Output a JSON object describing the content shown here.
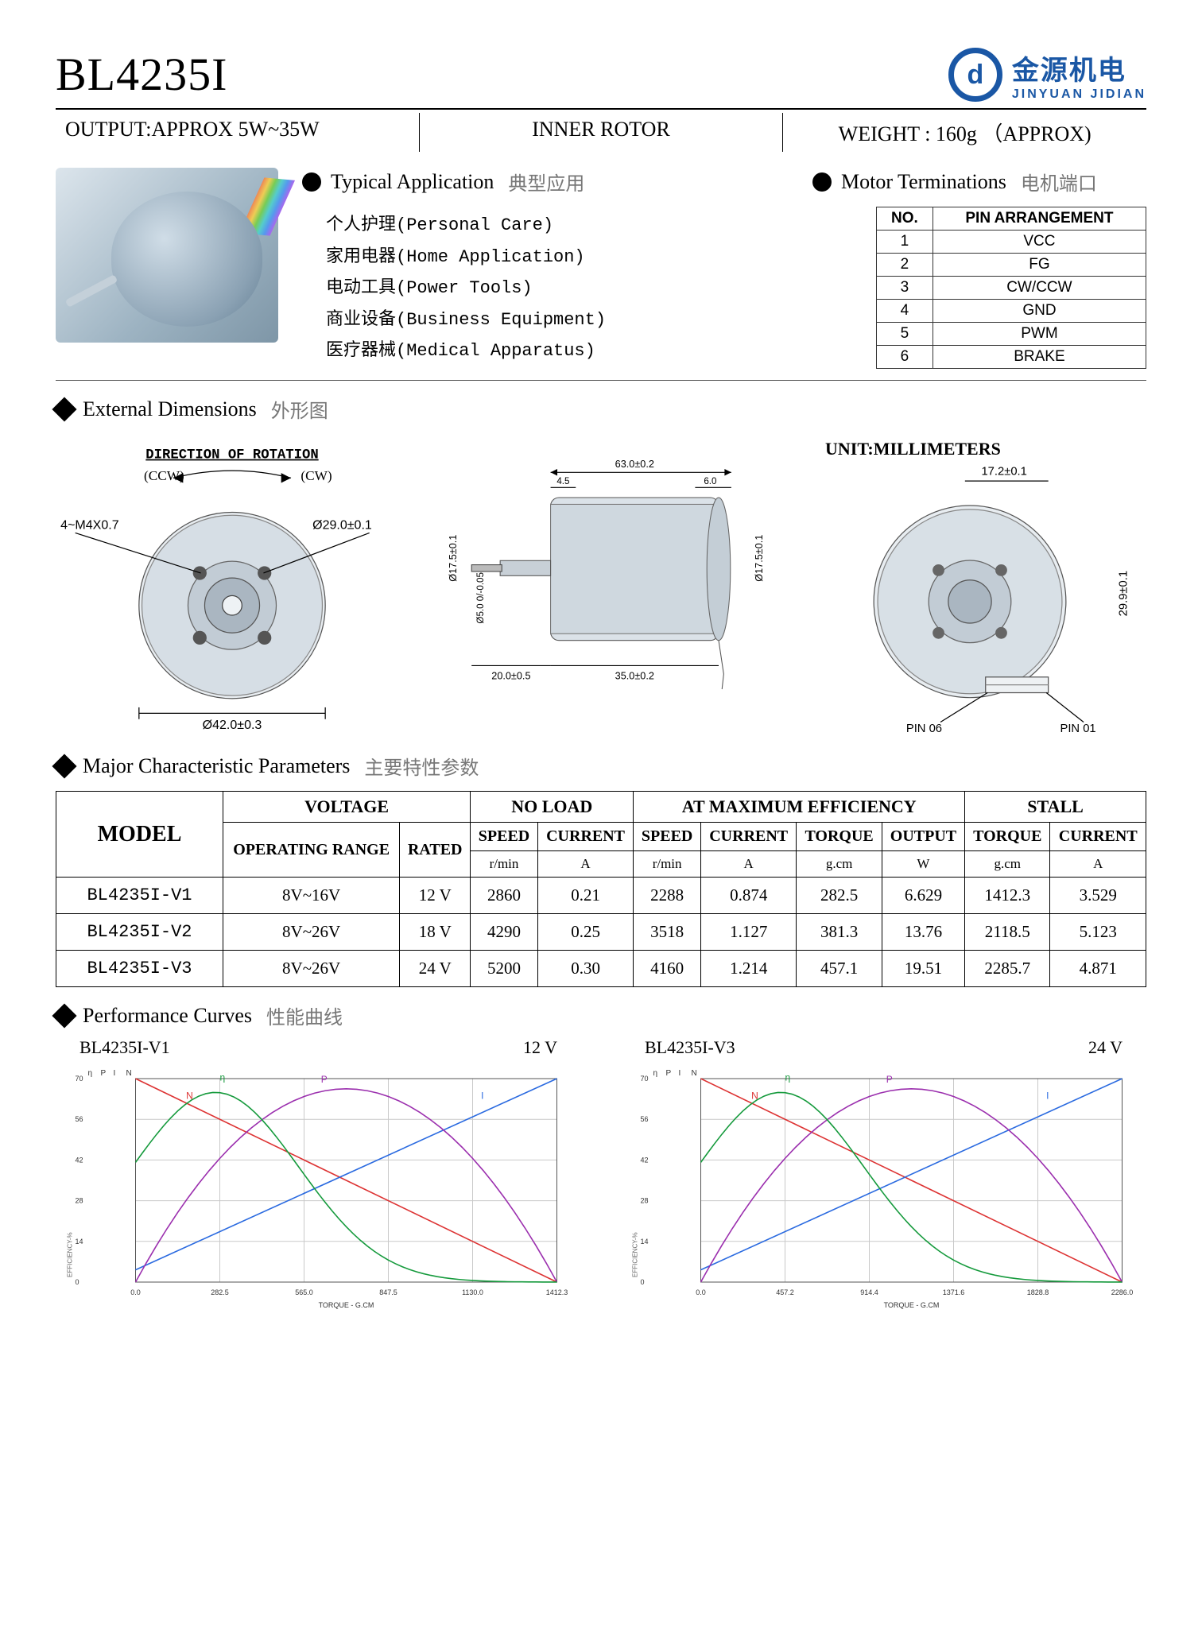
{
  "header": {
    "title": "BL4235I",
    "logo_cn": "金源机电",
    "logo_en": "JINYUAN JIDIAN",
    "logo_letter": "d"
  },
  "meta": {
    "output": "OUTPUT:APPROX 5W~35W",
    "rotor": "INNER  ROTOR",
    "weight": "WEIGHT : 160g （APPROX)"
  },
  "apps": {
    "head_en": "Typical  Application",
    "head_cn": "典型应用",
    "items": [
      "个人护理(Personal Care)",
      "家用电器(Home Application)",
      "电动工具(Power Tools)",
      "商业设备(Business Equipment)",
      "医疗器械(Medical Apparatus)"
    ]
  },
  "terminations": {
    "head_en": "Motor Terminations",
    "head_cn": "电机端口",
    "columns": [
      "NO.",
      "PIN  ARRANGEMENT"
    ],
    "rows": [
      [
        "1",
        "VCC"
      ],
      [
        "2",
        "FG"
      ],
      [
        "3",
        "CW/CCW"
      ],
      [
        "4",
        "GND"
      ],
      [
        "5",
        "PWM"
      ],
      [
        "6",
        "BRAKE"
      ]
    ]
  },
  "dims": {
    "head_en": "External  Dimensions",
    "head_cn": "外形图",
    "unit": "UNIT:MILLIMETERS",
    "labels": {
      "dor": "DIRECTION OF ROTATION",
      "ccw": "(CCW)",
      "cw": "(CW)",
      "m4": "4~M4X0.7",
      "d29": "Ø29.0±0.1",
      "d42": "Ø42.0±0.3",
      "d175a": "Ø17.5±0.1",
      "d175b": "Ø17.5±0.1",
      "l63": "63.0±0.2",
      "l45": "4.5",
      "l60": "6.0",
      "d50": "Ø5.0 0/-0.05",
      "l20": "20.0±0.5",
      "l35": "35.0±0.2",
      "l172": "17.2±0.1",
      "l299": "29.9±0.1",
      "pin06": "PIN 06",
      "pin01": "PIN 01"
    }
  },
  "params": {
    "head_en": "Major  Characteristic Parameters",
    "head_cn": "主要特性参数",
    "model_h": "MODEL",
    "groups": [
      "VOLTAGE",
      "NO   LOAD",
      "AT  MAXIMUM  EFFICIENCY",
      "STALL"
    ],
    "subs": {
      "voltage": [
        "OPERATING RANGE",
        "RATED"
      ],
      "noload": [
        "SPEED",
        "CURRENT"
      ],
      "maxeff": [
        "SPEED",
        "CURRENT",
        "TORQUE",
        "OUTPUT"
      ],
      "stall": [
        "TORQUE",
        "CURRENT"
      ]
    },
    "units": [
      "",
      "",
      "r/min",
      "A",
      "r/min",
      "A",
      "g.cm",
      "W",
      "g.cm",
      "A"
    ],
    "rows": [
      {
        "model": "BL4235I-V1",
        "v": [
          "8V~16V",
          "12 V",
          "2860",
          "0.21",
          "2288",
          "0.874",
          "282.5",
          "6.629",
          "1412.3",
          "3.529"
        ]
      },
      {
        "model": "BL4235I-V2",
        "v": [
          "8V~26V",
          "18 V",
          "4290",
          "0.25",
          "3518",
          "1.127",
          "381.3",
          "13.76",
          "2118.5",
          "5.123"
        ]
      },
      {
        "model": "BL4235I-V3",
        "v": [
          "8V~26V",
          "24 V",
          "5200",
          "0.30",
          "4160",
          "1.214",
          "457.1",
          "19.51",
          "2285.7",
          "4.871"
        ]
      }
    ]
  },
  "curves": {
    "head_en": "Performance Curves",
    "head_cn": "性能曲线",
    "charts": [
      {
        "title_left": "BL4235I-V1",
        "title_right": "12 V",
        "xmax": 1412.3,
        "xticks": [
          "0.0",
          "282.5",
          "565.0",
          "847.5",
          "1130.0",
          "1412.3"
        ],
        "xlabel": "TORQUE - G.CM",
        "left_ticks": [
          "70",
          "56",
          "42",
          "28",
          "14",
          "0"
        ],
        "axis_labels": [
          "η",
          "P",
          "I",
          "N"
        ],
        "colors": {
          "N": "#d33",
          "I": "#2a6ae0",
          "P": "#9b2fae",
          "eta": "#159a3c"
        },
        "grid": "#c9c9c9"
      },
      {
        "title_left": "BL4235I-V3",
        "title_right": "24 V",
        "xmax": 2285.7,
        "xticks": [
          "0.0",
          "457.2",
          "914.4",
          "1371.6",
          "1828.8",
          "2286.0"
        ],
        "xlabel": "TORQUE - G.CM",
        "left_ticks": [
          "70",
          "56",
          "42",
          "28",
          "14",
          "0"
        ],
        "axis_labels": [
          "η",
          "P",
          "I",
          "N"
        ],
        "colors": {
          "N": "#d33",
          "I": "#2a6ae0",
          "P": "#9b2fae",
          "eta": "#159a3c"
        },
        "grid": "#c9c9c9"
      }
    ]
  }
}
